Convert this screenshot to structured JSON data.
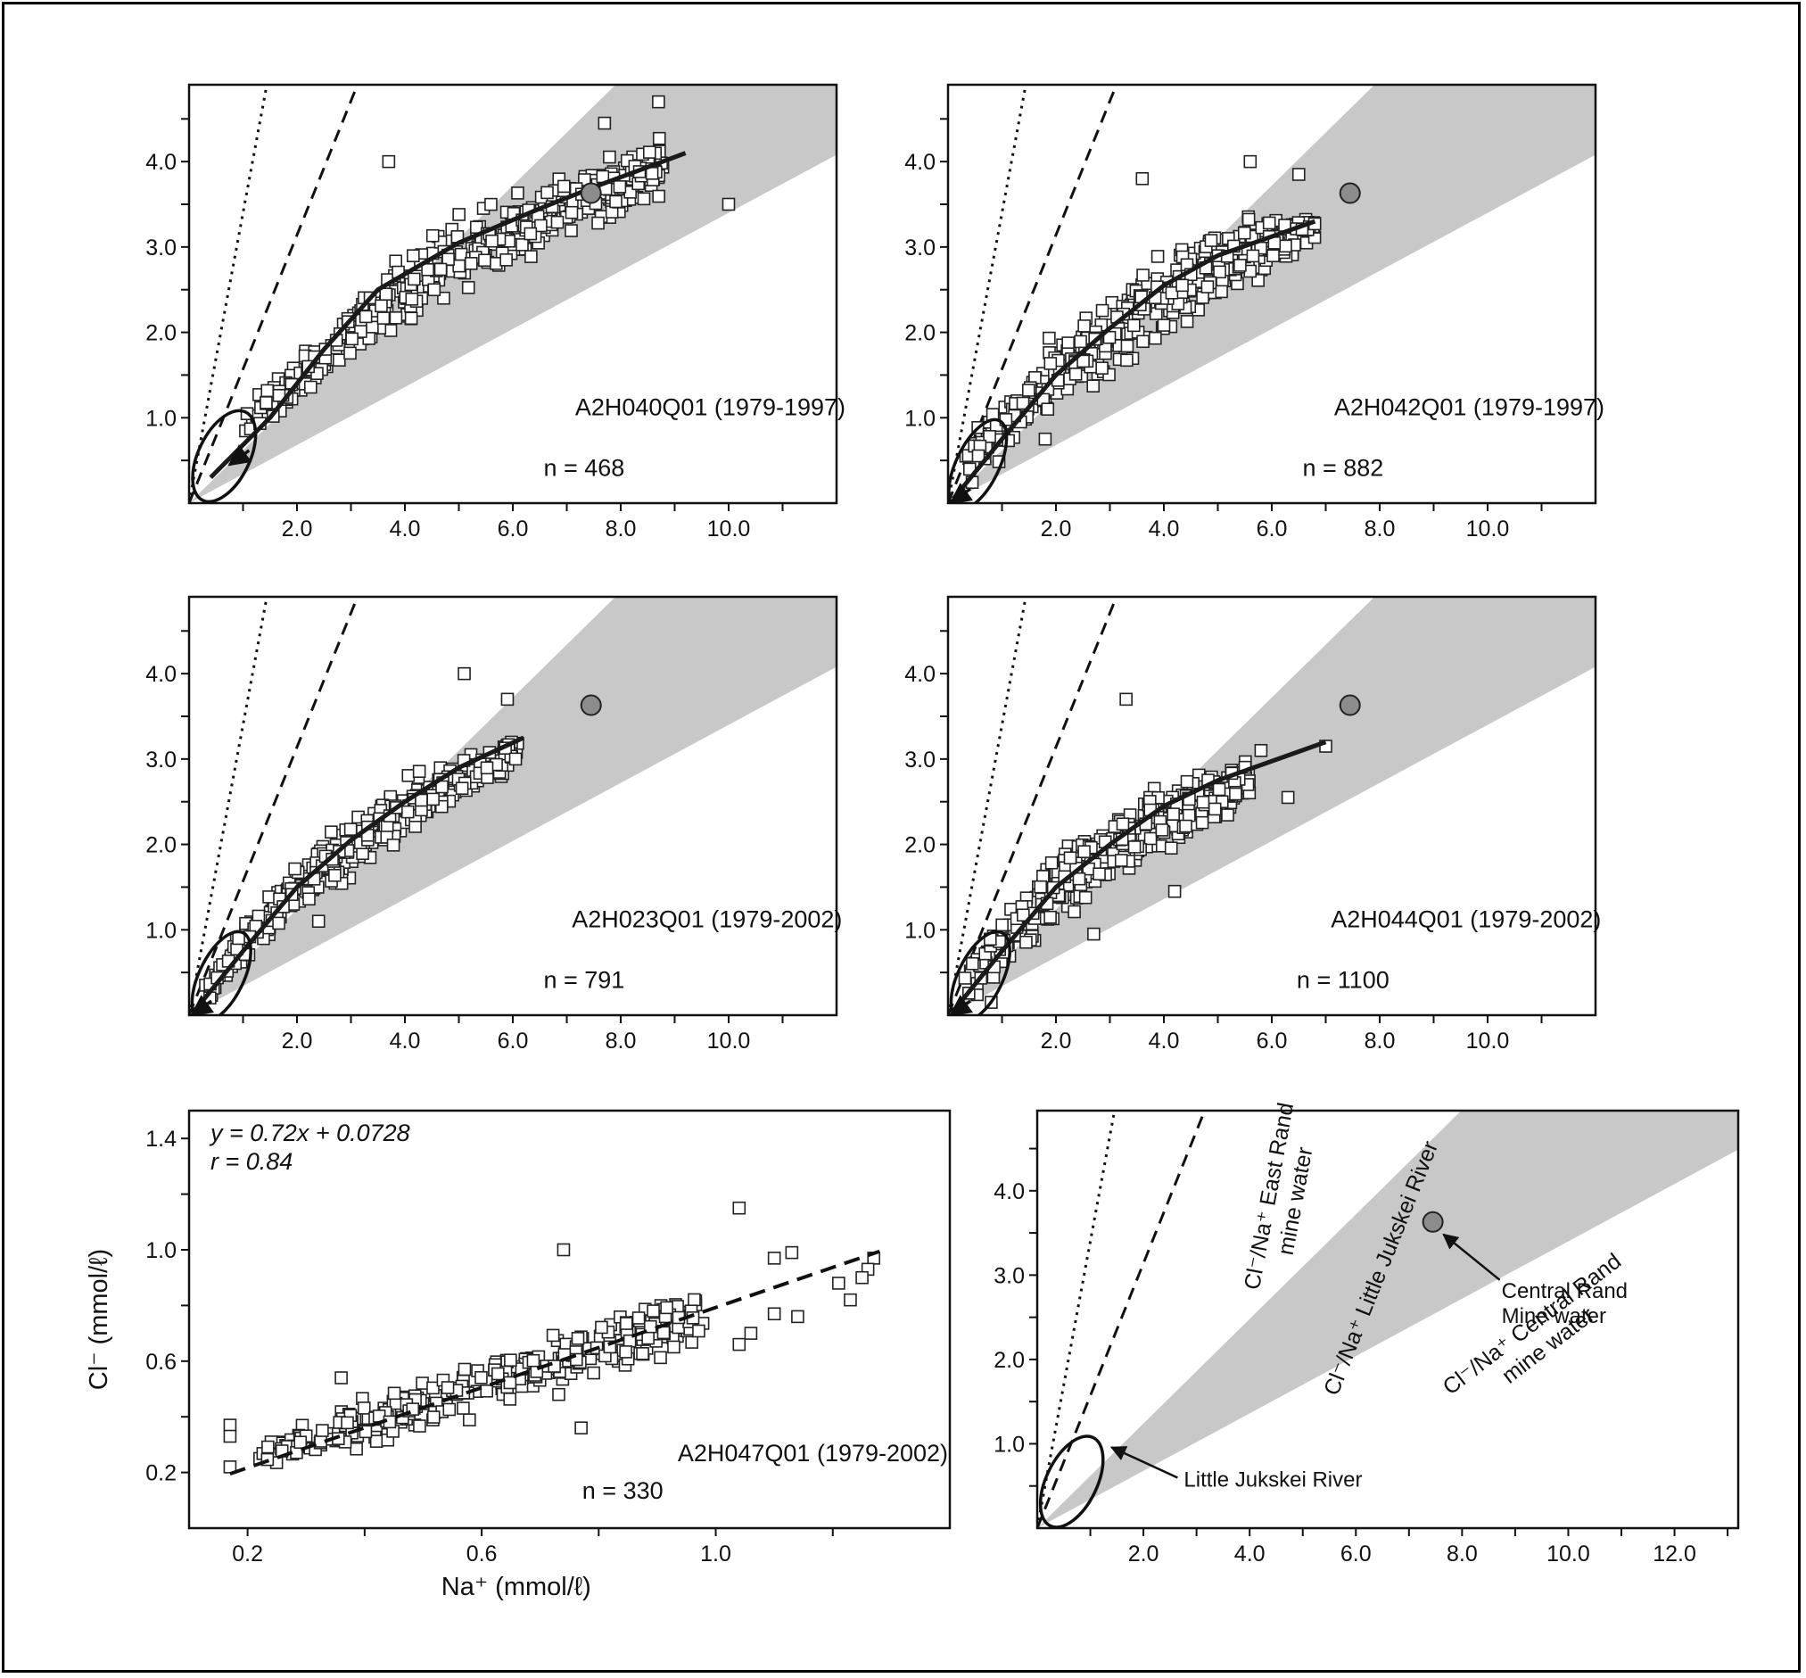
{
  "chart_data": [
    {
      "type": "scatter",
      "label": "A2H040Q01 (1979-1997)",
      "n_label": "n = 468",
      "xlim": [
        0,
        12
      ],
      "ylim": [
        0,
        4.9
      ],
      "x_ticks": [
        "2.0",
        "4.0",
        "6.0",
        "8.0",
        "10.0"
      ],
      "y_ticks": [
        "1.0",
        "2.0",
        "3.0",
        "4.0"
      ],
      "trend": [
        [
          0.4,
          0.3
        ],
        [
          1.5,
          1.0
        ],
        [
          2.5,
          1.8
        ],
        [
          3.5,
          2.5
        ],
        [
          5,
          3.05
        ],
        [
          6.5,
          3.45
        ],
        [
          7.5,
          3.7
        ],
        [
          9.2,
          4.1
        ]
      ],
      "cloud": {
        "count": 468,
        "xmin": 1.0,
        "xmax": 8.8,
        "lo": [
          [
            1,
            0.65
          ],
          [
            3,
            1.55
          ],
          [
            5,
            2.35
          ],
          [
            7,
            3.0
          ],
          [
            8.8,
            3.45
          ]
        ],
        "hi": [
          [
            1,
            1.1
          ],
          [
            3,
            2.5
          ],
          [
            5,
            3.5
          ],
          [
            7,
            3.95
          ],
          [
            8.8,
            4.4
          ]
        ]
      },
      "outliers": [
        [
          3.7,
          4.0
        ],
        [
          10.0,
          3.5
        ],
        [
          8.7,
          4.7
        ],
        [
          7.7,
          4.45
        ]
      ],
      "mine_water_point": [
        7.45,
        3.63
      ],
      "ellipse": {
        "cx": 0.65,
        "cy": 0.55,
        "rx": 0.72,
        "ry": 0.3,
        "angle_deg": 40
      },
      "arrow_to": [
        0.75,
        0.45
      ]
    },
    {
      "type": "scatter",
      "label": "A2H042Q01 (1979-1997)",
      "n_label": "n = 882",
      "xlim": [
        0,
        12
      ],
      "ylim": [
        0,
        4.9
      ],
      "x_ticks": [
        "2.0",
        "4.0",
        "6.0",
        "8.0",
        "10.0"
      ],
      "y_ticks": [
        "1.0",
        "2.0",
        "3.0",
        "4.0"
      ],
      "trend": [
        [
          0.1,
          0.05
        ],
        [
          1,
          0.75
        ],
        [
          2,
          1.5
        ],
        [
          3,
          2.05
        ],
        [
          4,
          2.55
        ],
        [
          5,
          2.9
        ],
        [
          6.8,
          3.3
        ]
      ],
      "cloud": {
        "count": 882,
        "xmin": 0.3,
        "xmax": 6.8,
        "lo": [
          [
            0.3,
            0.05
          ],
          [
            2,
            1.0
          ],
          [
            4,
            1.75
          ],
          [
            6,
            2.55
          ],
          [
            6.8,
            2.95
          ]
        ],
        "hi": [
          [
            0.3,
            0.7
          ],
          [
            2,
            2.1
          ],
          [
            4,
            3.1
          ],
          [
            6,
            3.55
          ],
          [
            6.8,
            3.45
          ]
        ]
      },
      "outliers": [
        [
          3.6,
          3.8
        ],
        [
          5.6,
          4.0
        ],
        [
          6.5,
          3.85
        ],
        [
          1.8,
          0.75
        ]
      ],
      "mine_water_point": [
        7.45,
        3.63
      ],
      "ellipse": {
        "cx": 0.55,
        "cy": 0.45,
        "rx": 0.7,
        "ry": 0.25,
        "angle_deg": 40
      },
      "arrow_to": [
        0.05,
        0.0
      ]
    },
    {
      "type": "scatter",
      "label": "A2H023Q01 (1979-2002)",
      "n_label": "n = 791",
      "xlim": [
        0,
        12
      ],
      "ylim": [
        0,
        4.9
      ],
      "x_ticks": [
        "2.0",
        "4.0",
        "6.0",
        "8.0",
        "10.0"
      ],
      "y_ticks": [
        "1.0",
        "2.0",
        "3.0",
        "4.0"
      ],
      "trend": [
        [
          0.1,
          0.05
        ],
        [
          1,
          0.75
        ],
        [
          2,
          1.5
        ],
        [
          3,
          2.05
        ],
        [
          4,
          2.5
        ],
        [
          5,
          2.9
        ],
        [
          6.2,
          3.25
        ]
      ],
      "cloud": {
        "count": 791,
        "xmin": 0.3,
        "xmax": 6.1,
        "lo": [
          [
            0.3,
            0.05
          ],
          [
            2,
            1.1
          ],
          [
            4,
            2.0
          ],
          [
            6.1,
            2.9
          ]
        ],
        "hi": [
          [
            0.3,
            0.6
          ],
          [
            2,
            1.9
          ],
          [
            4,
            2.85
          ],
          [
            6.1,
            3.3
          ]
        ]
      },
      "outliers": [
        [
          5.1,
          4.0
        ],
        [
          5.9,
          3.7
        ],
        [
          2.4,
          1.1
        ]
      ],
      "mine_water_point": [
        7.45,
        3.63
      ],
      "ellipse": {
        "cx": 0.6,
        "cy": 0.45,
        "rx": 0.72,
        "ry": 0.26,
        "angle_deg": 40
      },
      "arrow_to": [
        0.05,
        0.0
      ]
    },
    {
      "type": "scatter",
      "label": "A2H044Q01 (1979-2002)",
      "n_label": "n = 1100",
      "xlim": [
        0,
        12
      ],
      "ylim": [
        0,
        4.9
      ],
      "x_ticks": [
        "2.0",
        "4.0",
        "6.0",
        "8.0",
        "10.0"
      ],
      "y_ticks": [
        "1.0",
        "2.0",
        "3.0",
        "4.0"
      ],
      "trend": [
        [
          0.1,
          0.05
        ],
        [
          1,
          0.75
        ],
        [
          2,
          1.5
        ],
        [
          3,
          2.0
        ],
        [
          4,
          2.45
        ],
        [
          5,
          2.75
        ],
        [
          7,
          3.2
        ]
      ],
      "cloud": {
        "count": 1100,
        "xmin": 0.3,
        "xmax": 5.6,
        "lo": [
          [
            0.3,
            0.05
          ],
          [
            2,
            1.0
          ],
          [
            4,
            1.8
          ],
          [
            5.6,
            2.45
          ]
        ],
        "hi": [
          [
            0.3,
            0.7
          ],
          [
            2,
            2.1
          ],
          [
            4,
            2.8
          ],
          [
            5.6,
            3.05
          ]
        ]
      },
      "outliers": [
        [
          3.3,
          3.7
        ],
        [
          5.8,
          3.1
        ],
        [
          7.0,
          3.15
        ],
        [
          6.3,
          2.55
        ],
        [
          4.2,
          1.45
        ],
        [
          2.7,
          0.95
        ],
        [
          0.8,
          0.15
        ]
      ],
      "mine_water_point": [
        7.45,
        3.63
      ],
      "ellipse": {
        "cx": 0.6,
        "cy": 0.45,
        "rx": 0.72,
        "ry": 0.26,
        "angle_deg": 40
      },
      "arrow_to": [
        0.05,
        0.0
      ]
    },
    {
      "type": "scatter",
      "label": "A2H047Q01 (1979-2002)",
      "n_label": "n = 330",
      "equation": "y = 0.72x + 0.0728",
      "r_label": "r = 0.84",
      "xlabel": "Na⁺ (mmol/ℓ)",
      "ylabel": "Cl⁻ (mmol/ℓ)",
      "xlim": [
        0.1,
        1.4
      ],
      "ylim": [
        0.0,
        1.5
      ],
      "x_ticks": [
        "0.2",
        "0.6",
        "1.0"
      ],
      "y_ticks": [
        "0.2",
        "0.6",
        "1.0",
        "1.4"
      ],
      "fit_line": {
        "slope": 0.72,
        "intercept": 0.0728,
        "x_range": [
          0.17,
          1.28
        ]
      },
      "cloud": {
        "count": 330,
        "xmin": 0.22,
        "xmax": 0.98,
        "lo": [
          [
            0.22,
            0.19
          ],
          [
            0.6,
            0.38
          ],
          [
            0.98,
            0.63
          ]
        ],
        "hi": [
          [
            0.22,
            0.33
          ],
          [
            0.6,
            0.65
          ],
          [
            0.98,
            0.9
          ]
        ]
      },
      "outliers": [
        [
          0.17,
          0.37
        ],
        [
          0.17,
          0.33
        ],
        [
          0.17,
          0.22
        ],
        [
          0.74,
          1.0
        ],
        [
          1.04,
          1.15
        ],
        [
          1.13,
          0.99
        ],
        [
          1.1,
          0.97
        ],
        [
          1.27,
          0.97
        ],
        [
          1.26,
          0.93
        ],
        [
          1.25,
          0.9
        ],
        [
          1.23,
          0.82
        ],
        [
          1.21,
          0.88
        ],
        [
          1.14,
          0.76
        ],
        [
          1.1,
          0.77
        ],
        [
          1.04,
          0.66
        ],
        [
          1.06,
          0.7
        ],
        [
          0.36,
          0.54
        ],
        [
          0.77,
          0.36
        ]
      ]
    },
    {
      "type": "line",
      "role": "legend-schematic",
      "xlim": [
        0,
        13.2
      ],
      "ylim": [
        0,
        4.95
      ],
      "x_ticks": [
        "2.0",
        "4.0",
        "6.0",
        "8.0",
        "10.0",
        "12.0"
      ],
      "y_ticks": [
        "1.0",
        "2.0",
        "3.0",
        "4.0"
      ],
      "lines": [
        {
          "name": "Cl⁻/Na⁺ East Rand mine water",
          "style": "dotted",
          "slope": 3.4
        },
        {
          "name": "Cl⁻/Na⁺ Little Jukskei River",
          "style": "dashed",
          "slope": 1.57
        },
        {
          "name": "Cl⁻/Na⁺ Central Rand mine water",
          "style": "band",
          "slope_low": 0.34,
          "slope_high": 0.62
        }
      ],
      "mine_water_point": [
        7.45,
        3.63
      ],
      "annotations": [
        {
          "text_lines": [
            "Central Rand",
            "Mine water"
          ],
          "points_to": [
            7.45,
            3.63
          ]
        },
        {
          "text_lines": [
            "Little Jukskei River"
          ],
          "points_to": [
            1.3,
            1.0
          ]
        }
      ],
      "ellipse": {
        "cx": 0.65,
        "cy": 0.55,
        "rx": 0.72,
        "ry": 0.3,
        "angle_deg": 40
      }
    }
  ]
}
